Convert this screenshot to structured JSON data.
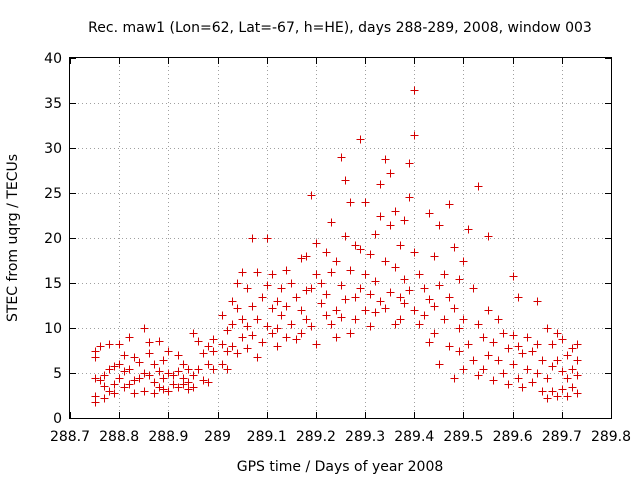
{
  "chart_data": {
    "type": "scatter",
    "title": "Rec. maw1 (Lon=62, Lat=-67, h=HE), days 288-289, 2008, window 003",
    "xlabel": "GPS time / Days of year 2008",
    "ylabel": "STEC from uqrg / TECUs",
    "xlim": [
      288.7,
      289.8
    ],
    "ylim": [
      0,
      40
    ],
    "x_ticks": [
      288.7,
      288.8,
      288.9,
      289.0,
      289.1,
      289.2,
      289.3,
      289.4,
      289.5,
      289.6,
      289.7,
      289.8
    ],
    "x_tick_labels": [
      "288.7",
      "288.8",
      "288.9",
      "289",
      "289.1",
      "289.2",
      "289.3",
      "289.4",
      "289.5",
      "289.6",
      "289.7",
      "289.8"
    ],
    "y_ticks": [
      0,
      5,
      10,
      15,
      20,
      25,
      30,
      35,
      40
    ],
    "y_tick_labels": [
      "0",
      "5",
      "10",
      "15",
      "20",
      "25",
      "30",
      "35",
      "40"
    ],
    "grid": true,
    "marker": "plus",
    "color": "#d40000",
    "series": [
      {
        "name": "STEC",
        "points": [
          [
            288.75,
            7.5
          ],
          [
            288.75,
            6.8
          ],
          [
            288.75,
            4.5
          ],
          [
            288.75,
            2.5
          ],
          [
            288.75,
            1.8
          ],
          [
            288.76,
            4.2
          ],
          [
            288.76,
            8.0
          ],
          [
            288.77,
            4.8
          ],
          [
            288.77,
            2.2
          ],
          [
            288.77,
            3.6
          ],
          [
            288.78,
            8.2
          ],
          [
            288.78,
            5.5
          ],
          [
            288.78,
            3.0
          ],
          [
            288.79,
            5.8
          ],
          [
            288.79,
            3.8
          ],
          [
            288.79,
            2.8
          ],
          [
            288.8,
            8.2
          ],
          [
            288.8,
            6.0
          ],
          [
            288.8,
            4.5
          ],
          [
            288.81,
            3.5
          ],
          [
            288.81,
            5.2
          ],
          [
            288.81,
            7.0
          ],
          [
            288.82,
            9.0
          ],
          [
            288.82,
            5.5
          ],
          [
            288.82,
            3.8
          ],
          [
            288.83,
            6.8
          ],
          [
            288.83,
            4.2
          ],
          [
            288.83,
            2.8
          ],
          [
            288.84,
            4.5
          ],
          [
            288.84,
            6.2
          ],
          [
            288.85,
            10.0
          ],
          [
            288.85,
            5.0
          ],
          [
            288.85,
            3.0
          ],
          [
            288.86,
            4.8
          ],
          [
            288.86,
            7.2
          ],
          [
            288.86,
            8.5
          ],
          [
            288.87,
            4.0
          ],
          [
            288.87,
            6.0
          ],
          [
            288.87,
            2.8
          ],
          [
            288.88,
            8.6
          ],
          [
            288.88,
            5.2
          ],
          [
            288.88,
            3.5
          ],
          [
            288.89,
            4.5
          ],
          [
            288.89,
            6.5
          ],
          [
            288.89,
            3.2
          ],
          [
            288.9,
            7.5
          ],
          [
            288.9,
            5.0
          ],
          [
            288.9,
            3.0
          ],
          [
            288.91,
            3.8
          ],
          [
            288.91,
            4.8
          ],
          [
            288.92,
            5.2
          ],
          [
            288.92,
            3.5
          ],
          [
            288.92,
            7.0
          ],
          [
            288.93,
            3.8
          ],
          [
            288.93,
            6.0
          ],
          [
            288.93,
            4.5
          ],
          [
            288.94,
            4.0
          ],
          [
            288.94,
            5.5
          ],
          [
            288.94,
            3.2
          ],
          [
            288.95,
            9.4
          ],
          [
            288.95,
            4.8
          ],
          [
            288.95,
            3.5
          ],
          [
            288.96,
            8.6
          ],
          [
            288.96,
            5.5
          ],
          [
            288.97,
            4.2
          ],
          [
            288.97,
            7.2
          ],
          [
            288.98,
            8.0
          ],
          [
            288.98,
            6.0
          ],
          [
            288.98,
            4.0
          ],
          [
            288.99,
            8.8
          ],
          [
            288.99,
            7.5
          ],
          [
            288.99,
            5.5
          ],
          [
            289.01,
            6.0
          ],
          [
            289.01,
            8.2
          ],
          [
            289.01,
            11.5
          ],
          [
            289.02,
            5.5
          ],
          [
            289.02,
            7.5
          ],
          [
            289.02,
            9.8
          ],
          [
            289.03,
            13.0
          ],
          [
            289.03,
            8.0
          ],
          [
            289.03,
            10.5
          ],
          [
            289.04,
            15.0
          ],
          [
            289.04,
            7.2
          ],
          [
            289.04,
            12.2
          ],
          [
            289.05,
            16.2
          ],
          [
            289.05,
            9.0
          ],
          [
            289.05,
            11.0
          ],
          [
            289.06,
            14.5
          ],
          [
            289.06,
            7.8
          ],
          [
            289.06,
            10.2
          ],
          [
            289.07,
            20.0
          ],
          [
            289.07,
            12.5
          ],
          [
            289.07,
            9.2
          ],
          [
            289.08,
            16.2
          ],
          [
            289.08,
            6.8
          ],
          [
            289.08,
            11.0
          ],
          [
            289.09,
            8.5
          ],
          [
            289.09,
            13.5
          ],
          [
            289.1,
            20.0
          ],
          [
            289.1,
            10.2
          ],
          [
            289.1,
            14.8
          ],
          [
            289.11,
            12.2
          ],
          [
            289.11,
            9.5
          ],
          [
            289.11,
            16.0
          ],
          [
            289.12,
            13.0
          ],
          [
            289.12,
            10.0
          ],
          [
            289.12,
            8.0
          ],
          [
            289.13,
            14.5
          ],
          [
            289.13,
            11.5
          ],
          [
            289.14,
            16.5
          ],
          [
            289.14,
            9.0
          ],
          [
            289.14,
            12.5
          ],
          [
            289.15,
            15.0
          ],
          [
            289.15,
            10.5
          ],
          [
            289.16,
            13.5
          ],
          [
            289.16,
            8.8
          ],
          [
            289.17,
            17.8
          ],
          [
            289.17,
            12.0
          ],
          [
            289.17,
            9.5
          ],
          [
            289.18,
            14.2
          ],
          [
            289.18,
            11.0
          ],
          [
            289.18,
            18.0
          ],
          [
            289.19,
            24.8
          ],
          [
            289.19,
            14.5
          ],
          [
            289.19,
            10.2
          ],
          [
            289.2,
            19.5
          ],
          [
            289.2,
            16.0
          ],
          [
            289.2,
            8.2
          ],
          [
            289.21,
            12.8
          ],
          [
            289.21,
            15.0
          ],
          [
            289.22,
            18.5
          ],
          [
            289.22,
            11.5
          ],
          [
            289.22,
            13.8
          ],
          [
            289.23,
            21.8
          ],
          [
            289.23,
            10.5
          ],
          [
            289.23,
            16.2
          ],
          [
            289.24,
            17.5
          ],
          [
            289.24,
            12.0
          ],
          [
            289.24,
            9.0
          ],
          [
            289.25,
            29.0
          ],
          [
            289.25,
            14.8
          ],
          [
            289.25,
            11.2
          ],
          [
            289.26,
            26.5
          ],
          [
            289.26,
            20.2
          ],
          [
            289.26,
            13.2
          ],
          [
            289.27,
            24.0
          ],
          [
            289.27,
            16.5
          ],
          [
            289.27,
            9.5
          ],
          [
            289.28,
            19.2
          ],
          [
            289.28,
            13.5
          ],
          [
            289.28,
            11.0
          ],
          [
            289.29,
            31.0
          ],
          [
            289.29,
            18.8
          ],
          [
            289.29,
            14.5
          ],
          [
            289.3,
            24.0
          ],
          [
            289.3,
            16.0
          ],
          [
            289.3,
            12.0
          ],
          [
            289.31,
            18.2
          ],
          [
            289.31,
            13.8
          ],
          [
            289.31,
            10.2
          ],
          [
            289.32,
            20.5
          ],
          [
            289.32,
            15.2
          ],
          [
            289.32,
            11.8
          ],
          [
            289.33,
            26.0
          ],
          [
            289.33,
            22.5
          ],
          [
            289.33,
            13.0
          ],
          [
            289.34,
            28.8
          ],
          [
            289.34,
            17.5
          ],
          [
            289.34,
            12.2
          ],
          [
            289.35,
            27.2
          ],
          [
            289.35,
            21.5
          ],
          [
            289.35,
            14.0
          ],
          [
            289.36,
            23.0
          ],
          [
            289.36,
            16.8
          ],
          [
            289.36,
            10.5
          ],
          [
            289.37,
            19.2
          ],
          [
            289.37,
            13.5
          ],
          [
            289.37,
            11.0
          ],
          [
            289.38,
            22.0
          ],
          [
            289.38,
            15.5
          ],
          [
            289.38,
            12.8
          ],
          [
            289.39,
            28.3
          ],
          [
            289.39,
            24.5
          ],
          [
            289.39,
            14.2
          ],
          [
            289.4,
            36.5
          ],
          [
            289.4,
            31.4
          ],
          [
            289.4,
            18.5
          ],
          [
            289.4,
            12.0
          ],
          [
            289.41,
            16.0
          ],
          [
            289.41,
            10.5
          ],
          [
            289.42,
            14.5
          ],
          [
            289.42,
            11.5
          ],
          [
            289.43,
            22.8
          ],
          [
            289.43,
            13.2
          ],
          [
            289.43,
            8.5
          ],
          [
            289.44,
            18.0
          ],
          [
            289.44,
            12.5
          ],
          [
            289.44,
            9.5
          ],
          [
            289.45,
            21.5
          ],
          [
            289.45,
            14.8
          ],
          [
            289.45,
            6.0
          ],
          [
            289.46,
            16.0
          ],
          [
            289.46,
            11.0
          ],
          [
            289.47,
            23.8
          ],
          [
            289.47,
            13.5
          ],
          [
            289.47,
            8.0
          ],
          [
            289.48,
            19.0
          ],
          [
            289.48,
            12.2
          ],
          [
            289.48,
            4.5
          ],
          [
            289.49,
            15.5
          ],
          [
            289.49,
            10.0
          ],
          [
            289.49,
            7.5
          ],
          [
            289.5,
            17.5
          ],
          [
            289.5,
            11.0
          ],
          [
            289.5,
            5.5
          ],
          [
            289.51,
            21.0
          ],
          [
            289.51,
            8.2
          ],
          [
            289.52,
            14.5
          ],
          [
            289.52,
            6.5
          ],
          [
            289.53,
            25.8
          ],
          [
            289.53,
            10.5
          ],
          [
            289.53,
            4.8
          ],
          [
            289.54,
            9.0
          ],
          [
            289.54,
            5.5
          ],
          [
            289.55,
            20.2
          ],
          [
            289.55,
            12.0
          ],
          [
            289.55,
            7.0
          ],
          [
            289.56,
            8.5
          ],
          [
            289.56,
            4.2
          ],
          [
            289.57,
            11.0
          ],
          [
            289.57,
            6.5
          ],
          [
            289.58,
            9.5
          ],
          [
            289.58,
            5.0
          ],
          [
            289.59,
            7.8
          ],
          [
            289.59,
            3.8
          ],
          [
            289.6,
            15.8
          ],
          [
            289.6,
            9.2
          ],
          [
            289.6,
            6.0
          ],
          [
            289.61,
            13.5
          ],
          [
            289.61,
            8.0
          ],
          [
            289.61,
            4.5
          ],
          [
            289.62,
            7.2
          ],
          [
            289.62,
            3.5
          ],
          [
            289.63,
            9.0
          ],
          [
            289.63,
            5.5
          ],
          [
            289.64,
            7.5
          ],
          [
            289.64,
            4.0
          ],
          [
            289.65,
            13.0
          ],
          [
            289.65,
            8.2
          ],
          [
            289.65,
            5.0
          ],
          [
            289.66,
            6.5
          ],
          [
            289.66,
            3.0
          ],
          [
            289.67,
            10.0
          ],
          [
            289.67,
            4.5
          ],
          [
            289.67,
            2.2
          ],
          [
            289.68,
            8.2
          ],
          [
            289.68,
            5.8
          ],
          [
            289.68,
            3.0
          ],
          [
            289.69,
            9.5
          ],
          [
            289.69,
            6.5
          ],
          [
            289.69,
            2.5
          ],
          [
            289.7,
            8.8
          ],
          [
            289.7,
            5.2
          ],
          [
            289.7,
            3.2
          ],
          [
            289.71,
            7.0
          ],
          [
            289.71,
            4.5
          ],
          [
            289.71,
            2.5
          ],
          [
            289.72,
            7.8
          ],
          [
            289.72,
            5.5
          ],
          [
            289.72,
            3.5
          ],
          [
            289.73,
            8.2
          ],
          [
            289.73,
            6.5
          ],
          [
            289.73,
            4.8
          ],
          [
            289.73,
            2.8
          ]
        ]
      }
    ]
  }
}
